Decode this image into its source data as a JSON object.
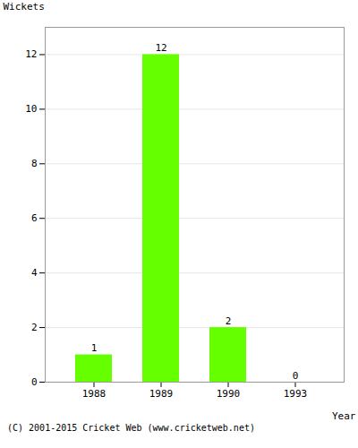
{
  "chart_data": {
    "type": "bar",
    "categories": [
      "1988",
      "1989",
      "1990",
      "1993"
    ],
    "values": [
      1,
      12,
      2,
      0
    ],
    "color": "#66ff00",
    "xlabel": "Year",
    "ylabel": "Wickets",
    "ylim": [
      0,
      13
    ],
    "yticks": [
      0,
      2,
      4,
      6,
      8,
      10,
      12
    ],
    "grid": true,
    "data_labels": true,
    "caption": "(C) 2001-2015 Cricket Web (www.cricketweb.net)"
  }
}
